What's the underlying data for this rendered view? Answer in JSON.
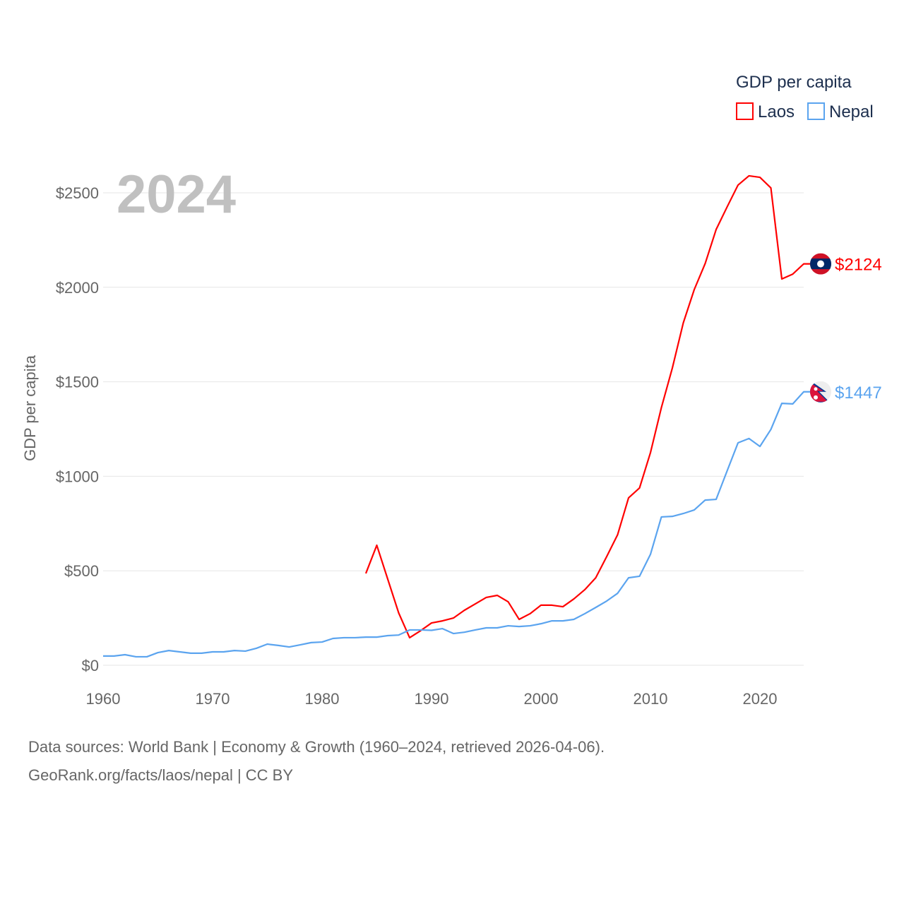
{
  "chart_data": {
    "type": "line",
    "year_label": "2024",
    "ylabel": "GDP per capita",
    "legend_title": "GDP per capita",
    "legend_placement": "top-right",
    "xlim": [
      1960,
      2024
    ],
    "ylim": [
      0,
      2750
    ],
    "xticks": [
      "1960",
      "1970",
      "1980",
      "1990",
      "2000",
      "2010",
      "2020"
    ],
    "xtick_values": [
      1960,
      1970,
      1980,
      1990,
      2000,
      2010,
      2020
    ],
    "yticks": [
      "$0",
      "$500",
      "$1000",
      "$1500",
      "$2000",
      "$2500"
    ],
    "ytick_values": [
      0,
      500,
      1000,
      1500,
      2000,
      2500
    ],
    "grid": true,
    "series": [
      {
        "name": "Laos",
        "color": "#ff0000",
        "end_label": "$2124",
        "flag": "laos-flag",
        "start_year": 1984,
        "values": [
          486,
          635,
          456,
          277,
          146,
          183,
          224,
          235,
          250,
          291,
          325,
          359,
          370,
          336,
          243,
          273,
          318,
          318,
          310,
          351,
          400,
          463,
          575,
          691,
          886,
          938,
          1125,
          1364,
          1573,
          1812,
          1988,
          2126,
          2306,
          2425,
          2541,
          2590,
          2582,
          2526,
          2044,
          2070,
          2124
        ]
      },
      {
        "name": "Nepal",
        "color": "#5ba4ef",
        "end_label": "$1447",
        "flag": "nepal-flag",
        "start_year": 1960,
        "values": [
          49,
          49,
          56,
          45,
          45,
          67,
          78,
          71,
          64,
          64,
          71,
          71,
          78,
          75,
          90,
          112,
          105,
          97,
          108,
          120,
          123,
          142,
          146,
          146,
          149,
          149,
          157,
          160,
          187,
          187,
          185,
          194,
          168,
          175,
          187,
          198,
          198,
          209,
          205,
          209,
          220,
          235,
          235,
          243,
          273,
          306,
          340,
          381,
          463,
          471,
          587,
          785,
          788,
          803,
          822,
          874,
          878,
          1028,
          1177,
          1200,
          1158,
          1248,
          1386,
          1383,
          1447
        ]
      }
    ]
  },
  "footer": {
    "line1": "Data sources: World Bank | Economy & Growth (1960–2024, retrieved 2026-04-06).",
    "line2": "GeoRank.org/facts/laos/nepal | CC BY"
  }
}
